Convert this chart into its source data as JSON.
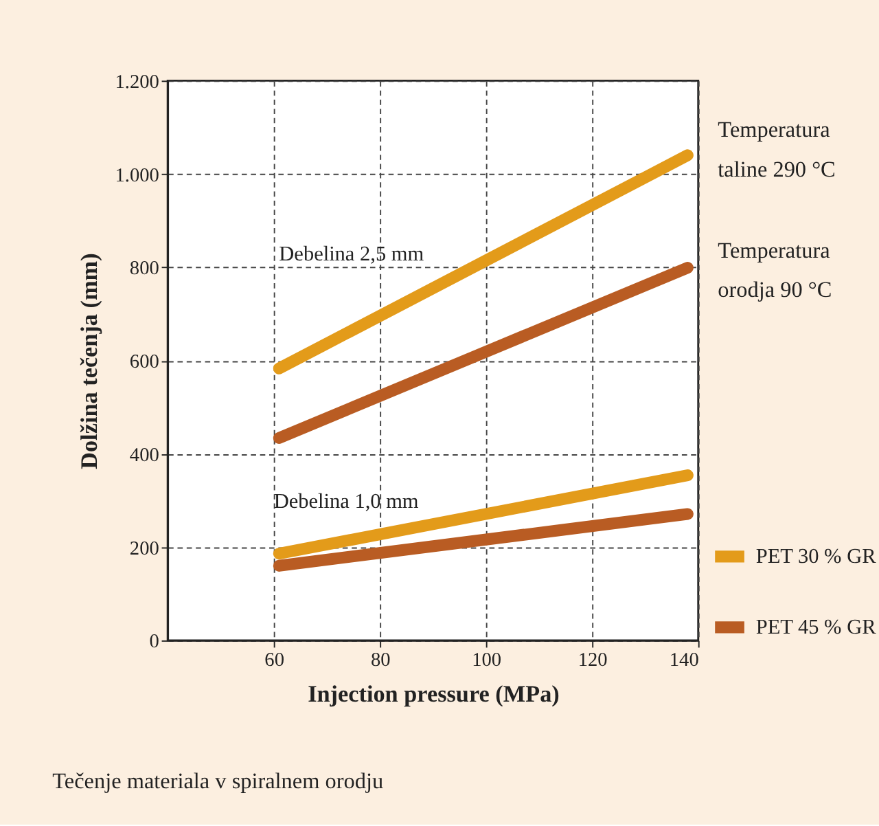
{
  "chart_data": {
    "type": "line",
    "xlabel": "Injection pressure (MPa)",
    "ylabel": "Dolžina tečenja (mm)",
    "xlim": [
      40,
      140
    ],
    "xticks": [
      60,
      80,
      100,
      120,
      140
    ],
    "ylim": [
      0,
      1200
    ],
    "yticks": [
      0,
      200,
      400,
      600,
      800,
      {
        "value": 1000,
        "label": "1.000"
      },
      {
        "value": 1200,
        "label": "1.200"
      }
    ],
    "grid": true,
    "legend": "bottom right",
    "line_style": "solid",
    "x": [
      61,
      138
    ],
    "series": [
      {
        "name": "PET 30 % GR",
        "color": "#e39b1a",
        "values": [
          583,
          1040
        ]
      },
      {
        "name": "PET 45 % GR",
        "color": "#b95c23",
        "values": [
          434,
          799
        ]
      },
      {
        "color": "#e39b1a",
        "values": [
          186,
          354
        ]
      },
      {
        "color": "#b95c23",
        "values": [
          160,
          271
        ]
      }
    ],
    "annotations": [
      "Temperatura taline 290 °C",
      "Temperatura orodja 90 °C",
      "Debelina 2,5 mm",
      "Debelina 1,0 mm",
      "Tečenje materiala v spiralnem orodju"
    ]
  }
}
